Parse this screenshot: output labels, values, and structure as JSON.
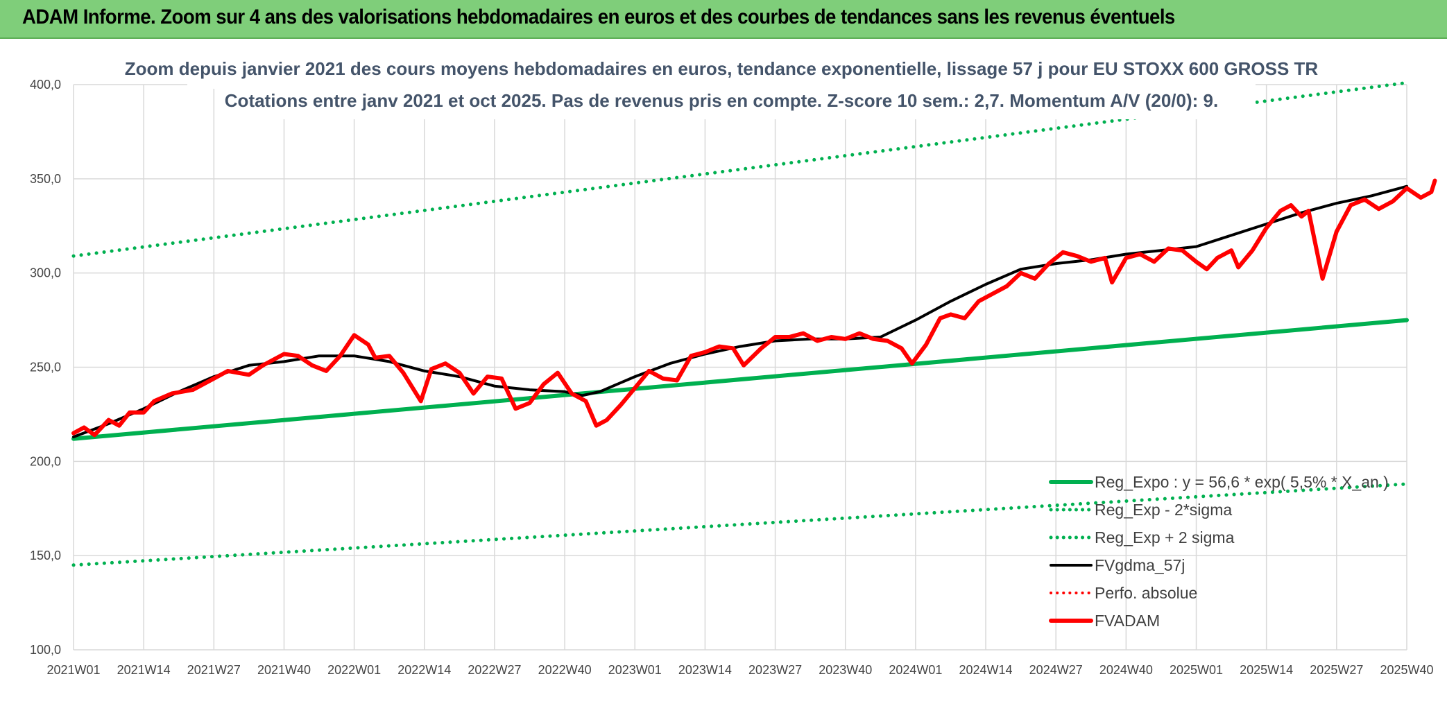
{
  "banner": {
    "title": "ADAM Informe. Zoom sur 4 ans des valorisations hebdomadaires en euros et des courbes de tendances sans les revenus éventuels",
    "color": "#7fce7a"
  },
  "chart_data": {
    "type": "line",
    "title_lines": [
      "Zoom depuis janvier 2021 des cours moyens hebdomadaires en euros, tendance exponentielle, lissage 57 j pour EU STOXX 600 GROSS TR",
      "Cotations entre janv 2021 et oct 2025. Pas de revenus pris en compte. Z-score 10 sem.: 2,7. Momentum A/V (20/0): 9."
    ],
    "x_ticks": [
      "2021W01",
      "2021W14",
      "2021W27",
      "2021W40",
      "2022W01",
      "2022W14",
      "2022W27",
      "2022W40",
      "2023W01",
      "2023W14",
      "2023W27",
      "2023W40",
      "2024W01",
      "2024W14",
      "2024W27",
      "2024W40",
      "2025W01",
      "2025W14",
      "2025W27",
      "2025W40"
    ],
    "y_ticks": [
      "100,0",
      "150,0",
      "200,0",
      "250,0",
      "300,0",
      "350,0",
      "400,0"
    ],
    "ylim": [
      100,
      400
    ],
    "grid": true,
    "legend_position": "bottom-right",
    "series": [
      {
        "name": "Reg_Expo : y = 56,6 * exp( 5,5% * X_an )",
        "style": "solid",
        "color": "#00b050",
        "width": 6,
        "points": [
          [
            0,
            212
          ],
          [
            19,
            275
          ]
        ]
      },
      {
        "name": "Reg_Exp - 2*sigma",
        "style": "dotted",
        "color": "#00b050",
        "width": 5,
        "points": [
          [
            0,
            145
          ],
          [
            19,
            188
          ]
        ]
      },
      {
        "name": "Reg_Exp + 2 sigma",
        "style": "dotted",
        "color": "#00b050",
        "width": 5,
        "points": [
          [
            0,
            309
          ],
          [
            19,
            401
          ]
        ]
      },
      {
        "name": "FVgdma_57j",
        "style": "solid",
        "color": "#000000",
        "width": 4,
        "points": [
          [
            0,
            213
          ],
          [
            0.5,
            220
          ],
          [
            1,
            228
          ],
          [
            1.5,
            237
          ],
          [
            2,
            245
          ],
          [
            2.5,
            251
          ],
          [
            3,
            253
          ],
          [
            3.5,
            256
          ],
          [
            4,
            256
          ],
          [
            4.5,
            253
          ],
          [
            5,
            248
          ],
          [
            5.5,
            245
          ],
          [
            6,
            240
          ],
          [
            6.5,
            238
          ],
          [
            7,
            237
          ],
          [
            7.25,
            235
          ],
          [
            7.5,
            237
          ],
          [
            8,
            245
          ],
          [
            8.5,
            252
          ],
          [
            9,
            257
          ],
          [
            9.5,
            261
          ],
          [
            10,
            264
          ],
          [
            10.5,
            265
          ],
          [
            11,
            265
          ],
          [
            11.5,
            266
          ],
          [
            12,
            275
          ],
          [
            12.5,
            285
          ],
          [
            13,
            294
          ],
          [
            13.5,
            302
          ],
          [
            14,
            305
          ],
          [
            14.5,
            307
          ],
          [
            15,
            310
          ],
          [
            15.5,
            312
          ],
          [
            16,
            314
          ],
          [
            16.5,
            320
          ],
          [
            17,
            326
          ],
          [
            17.5,
            332
          ],
          [
            18,
            337
          ],
          [
            18.5,
            341
          ],
          [
            19,
            346
          ]
        ]
      },
      {
        "name": "Perfo. absolue",
        "style": "dotted",
        "color": "#ff0000",
        "width": 4,
        "points": []
      },
      {
        "name": "FVADAM",
        "style": "solid",
        "color": "#ff0000",
        "width": 6,
        "points": [
          [
            0,
            215
          ],
          [
            0.15,
            218
          ],
          [
            0.3,
            214
          ],
          [
            0.5,
            222
          ],
          [
            0.65,
            219
          ],
          [
            0.8,
            226
          ],
          [
            1,
            226
          ],
          [
            1.15,
            232
          ],
          [
            1.4,
            236
          ],
          [
            1.7,
            238
          ],
          [
            2,
            244
          ],
          [
            2.2,
            248
          ],
          [
            2.5,
            246
          ],
          [
            2.7,
            251
          ],
          [
            3,
            257
          ],
          [
            3.2,
            256
          ],
          [
            3.4,
            251
          ],
          [
            3.6,
            248
          ],
          [
            3.8,
            256
          ],
          [
            4,
            267
          ],
          [
            4.2,
            262
          ],
          [
            4.3,
            255
          ],
          [
            4.5,
            256
          ],
          [
            4.7,
            247
          ],
          [
            4.95,
            232
          ],
          [
            5.1,
            249
          ],
          [
            5.3,
            252
          ],
          [
            5.5,
            247
          ],
          [
            5.7,
            236
          ],
          [
            5.9,
            245
          ],
          [
            6.1,
            244
          ],
          [
            6.3,
            228
          ],
          [
            6.5,
            231
          ],
          [
            6.7,
            241
          ],
          [
            6.9,
            247
          ],
          [
            7.1,
            236
          ],
          [
            7.3,
            232
          ],
          [
            7.45,
            219
          ],
          [
            7.6,
            222
          ],
          [
            7.8,
            230
          ],
          [
            8,
            239
          ],
          [
            8.2,
            248
          ],
          [
            8.4,
            244
          ],
          [
            8.6,
            243
          ],
          [
            8.8,
            256
          ],
          [
            9,
            258
          ],
          [
            9.2,
            261
          ],
          [
            9.4,
            260
          ],
          [
            9.55,
            251
          ],
          [
            9.8,
            260
          ],
          [
            10,
            266
          ],
          [
            10.2,
            266
          ],
          [
            10.4,
            268
          ],
          [
            10.6,
            264
          ],
          [
            10.8,
            266
          ],
          [
            11,
            265
          ],
          [
            11.2,
            268
          ],
          [
            11.4,
            265
          ],
          [
            11.6,
            264
          ],
          [
            11.8,
            260
          ],
          [
            11.95,
            252
          ],
          [
            12.15,
            262
          ],
          [
            12.35,
            276
          ],
          [
            12.5,
            278
          ],
          [
            12.7,
            276
          ],
          [
            12.9,
            285
          ],
          [
            13.1,
            289
          ],
          [
            13.3,
            293
          ],
          [
            13.5,
            300
          ],
          [
            13.7,
            297
          ],
          [
            13.9,
            305
          ],
          [
            14.1,
            311
          ],
          [
            14.3,
            309
          ],
          [
            14.5,
            306
          ],
          [
            14.7,
            308
          ],
          [
            14.8,
            295
          ],
          [
            15,
            308
          ],
          [
            15.2,
            310
          ],
          [
            15.4,
            306
          ],
          [
            15.6,
            313
          ],
          [
            15.8,
            312
          ],
          [
            16,
            306
          ],
          [
            16.15,
            302
          ],
          [
            16.3,
            308
          ],
          [
            16.5,
            312
          ],
          [
            16.6,
            303
          ],
          [
            16.8,
            312
          ],
          [
            17,
            324
          ],
          [
            17.2,
            333
          ],
          [
            17.35,
            336
          ],
          [
            17.5,
            330
          ],
          [
            17.6,
            333
          ],
          [
            17.8,
            297
          ],
          [
            18,
            322
          ],
          [
            18.2,
            336
          ],
          [
            18.4,
            339
          ],
          [
            18.6,
            334
          ],
          [
            18.8,
            338
          ],
          [
            19,
            345
          ],
          [
            19.2,
            340
          ],
          [
            19.35,
            343
          ],
          [
            19.4,
            349
          ]
        ]
      }
    ]
  }
}
